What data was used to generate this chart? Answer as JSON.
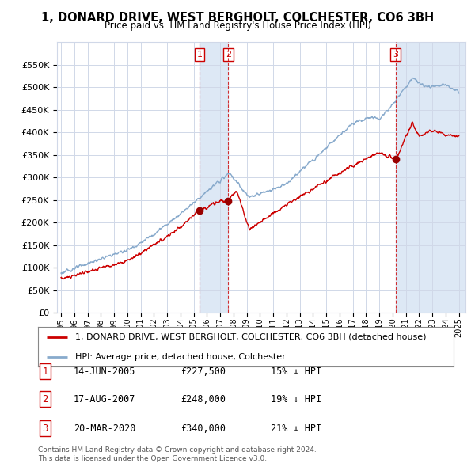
{
  "title": "1, DONARD DRIVE, WEST BERGHOLT, COLCHESTER, CO6 3BH",
  "subtitle": "Price paid vs. HM Land Registry's House Price Index (HPI)",
  "ylim": [
    0,
    600000
  ],
  "yticks": [
    0,
    50000,
    100000,
    150000,
    200000,
    250000,
    300000,
    350000,
    400000,
    450000,
    500000,
    550000
  ],
  "ytick_labels": [
    "£0",
    "£50K",
    "£100K",
    "£150K",
    "£200K",
    "£250K",
    "£300K",
    "£350K",
    "£400K",
    "£450K",
    "£500K",
    "£550K"
  ],
  "background_color": "#ffffff",
  "plot_bg_color": "#ffffff",
  "grid_color": "#d0d8e8",
  "line_color_red": "#cc0000",
  "line_color_blue": "#88aacc",
  "shade_color": "#dde8f5",
  "transaction_years": [
    2005.45,
    2007.62,
    2020.22
  ],
  "transaction_prices": [
    227500,
    248000,
    340000
  ],
  "transaction_labels": [
    "1",
    "2",
    "3"
  ],
  "transaction_markers": [
    {
      "date_str": "14-JUN-2005",
      "price_str": "£227,500",
      "hpi_str": "15% ↓ HPI"
    },
    {
      "date_str": "17-AUG-2007",
      "price_str": "£248,000",
      "hpi_str": "19% ↓ HPI"
    },
    {
      "date_str": "20-MAR-2020",
      "price_str": "£340,000",
      "hpi_str": "21% ↓ HPI"
    }
  ],
  "legend_entry1": "1, DONARD DRIVE, WEST BERGHOLT, COLCHESTER, CO6 3BH (detached house)",
  "legend_entry2": "HPI: Average price, detached house, Colchester",
  "footer1": "Contains HM Land Registry data © Crown copyright and database right 2024.",
  "footer2": "This data is licensed under the Open Government Licence v3.0."
}
